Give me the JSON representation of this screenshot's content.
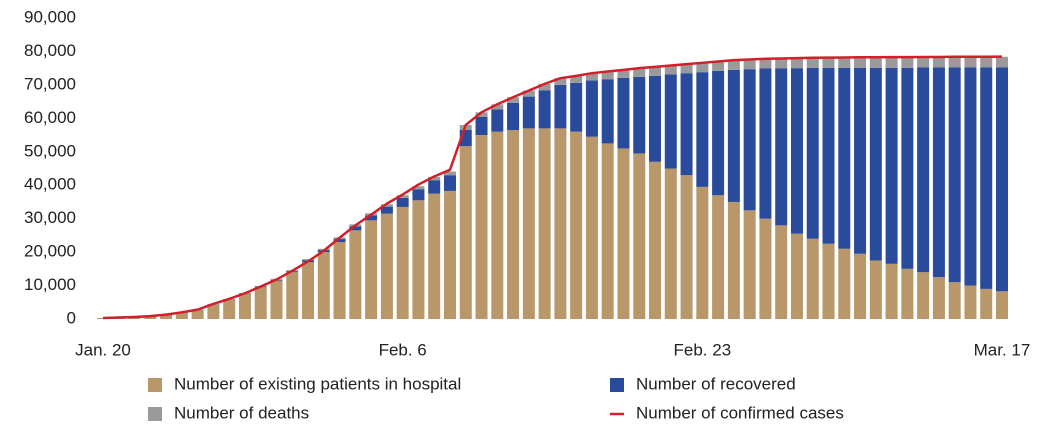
{
  "chart_data": {
    "type": "bar",
    "stacked": true,
    "categories": [
      "Jan. 20",
      null,
      null,
      null,
      null,
      null,
      null,
      null,
      null,
      null,
      null,
      null,
      null,
      null,
      null,
      null,
      null,
      null,
      null,
      "Feb. 6",
      null,
      null,
      null,
      null,
      null,
      null,
      null,
      null,
      null,
      null,
      null,
      null,
      null,
      null,
      null,
      null,
      null,
      null,
      "Feb. 23",
      null,
      null,
      null,
      null,
      null,
      null,
      null,
      null,
      null,
      null,
      null,
      null,
      null,
      null,
      null,
      null,
      null,
      null,
      "Mar. 17"
    ],
    "series": [
      {
        "name": "Number of existing patients in hospital",
        "color": "#b8976a",
        "values": [
          300,
          400,
          500,
          800,
          1200,
          1800,
          2600,
          4300,
          5800,
          7500,
          9500,
          11500,
          14000,
          17000,
          20000,
          23000,
          26500,
          29500,
          31500,
          33500,
          35500,
          37500,
          38300,
          51700,
          55000,
          56000,
          56500,
          57000,
          57000,
          57000,
          56000,
          54500,
          52500,
          51000,
          49500,
          47000,
          45000,
          43000,
          39500,
          37000,
          35000,
          32500,
          30000,
          28000,
          25500,
          24000,
          22500,
          21000,
          19500,
          17500,
          16500,
          15000,
          14000,
          12500,
          11000,
          10000,
          9000,
          8300
        ]
      },
      {
        "name": "Number of recovered",
        "color": "#2a4b9b",
        "values": [
          0,
          0,
          0,
          0,
          0,
          100,
          100,
          100,
          100,
          100,
          200,
          200,
          300,
          500,
          600,
          900,
          1200,
          1500,
          2100,
          2700,
          3300,
          4000,
          4700,
          4900,
          5400,
          6700,
          8100,
          9500,
          11400,
          13000,
          14600,
          16800,
          19200,
          21100,
          22900,
          25700,
          28100,
          30500,
          34300,
          37200,
          39500,
          42200,
          44900,
          46900,
          49500,
          51100,
          52600,
          54100,
          55600,
          57600,
          58600,
          60100,
          61200,
          62700,
          64200,
          65200,
          66200,
          66900
        ]
      },
      {
        "name": "Number of deaths",
        "color": "#9a9a9a",
        "values": [
          0,
          0,
          0,
          0,
          0,
          100,
          100,
          100,
          100,
          200,
          200,
          300,
          300,
          400,
          400,
          500,
          600,
          600,
          700,
          800,
          900,
          1000,
          1100,
          1400,
          1400,
          1500,
          1700,
          1800,
          1900,
          2000,
          2100,
          2200,
          2300,
          2400,
          2600,
          2700,
          2700,
          2700,
          2800,
          2800,
          2900,
          2900,
          2900,
          3000,
          3000,
          3000,
          3100,
          3100,
          3100,
          3100,
          3200,
          3200,
          3200,
          3200,
          3200,
          3200,
          3200,
          3200
        ]
      },
      {
        "name": "Number of confirmed cases",
        "color": "#d0202a",
        "type": "line",
        "values": [
          300,
          450,
          600,
          850,
          1300,
          2000,
          2800,
          4500,
          6000,
          7700,
          9700,
          11800,
          14400,
          17200,
          20400,
          24300,
          28000,
          31200,
          34500,
          37200,
          40200,
          42600,
          44600,
          58000,
          61800,
          64200,
          66300,
          68300,
          70300,
          72000,
          72700,
          73500,
          74000,
          74500,
          75000,
          75400,
          75800,
          76200,
          76600,
          77000,
          77400,
          77600,
          77800,
          77900,
          78000,
          78100,
          78150,
          78200,
          78250,
          78250,
          78300,
          78300,
          78350,
          78350,
          78400,
          78400,
          78400,
          78450
        ]
      }
    ],
    "ylim": [
      0,
      90000
    ],
    "yticks": [
      0,
      {
        "value": 10000,
        "label": "10,000"
      },
      {
        "value": 20000,
        "label": "20,000"
      },
      {
        "value": 30000,
        "label": "30,000"
      },
      {
        "value": 40000,
        "label": "40,000"
      },
      {
        "value": 50000,
        "label": "50,000"
      },
      {
        "value": 60000,
        "label": "60,000"
      },
      {
        "value": 70000,
        "label": "70,000"
      },
      {
        "value": 80000,
        "label": "80,000"
      },
      {
        "value": 90000,
        "label": "90,000"
      }
    ],
    "grid": false
  }
}
